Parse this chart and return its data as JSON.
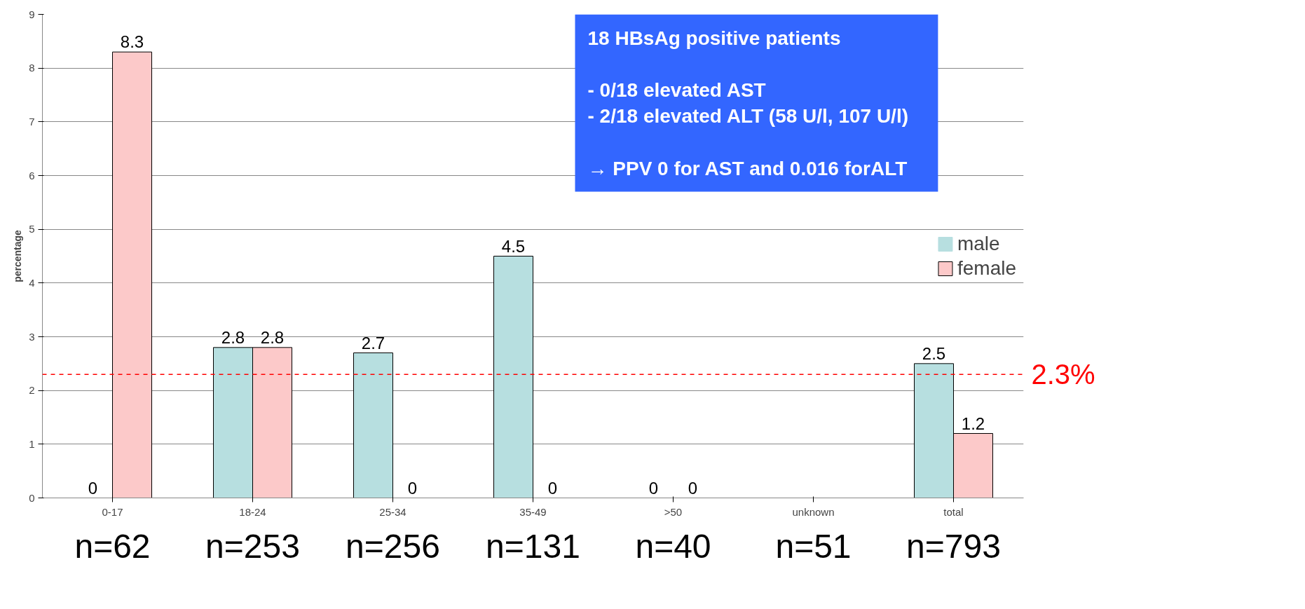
{
  "chart_data": {
    "type": "bar",
    "ylabel": "percentage",
    "categories": [
      "0-17",
      "18-24",
      "25-34",
      "35-49",
      ">50",
      "unknown",
      "total"
    ],
    "series": [
      {
        "name": "male",
        "color": "#b7dfe0",
        "values": [
          0,
          2.8,
          2.7,
          4.5,
          0,
          null,
          2.5
        ]
      },
      {
        "name": "female",
        "color": "#fcc9c9",
        "values": [
          8.3,
          2.8,
          0,
          0,
          0,
          null,
          1.2
        ]
      }
    ],
    "ylim": [
      0,
      9
    ],
    "yticks": [
      0,
      1,
      2,
      3,
      4,
      5,
      6,
      7,
      8,
      9
    ],
    "grid": "y",
    "legend": "right",
    "data_labels": true,
    "ref_lines": [
      {
        "axis": "y",
        "value": 2.3,
        "label": "2.3%",
        "color": "#ff0000",
        "line_style": "dashed"
      }
    ],
    "annotations": [
      "18 HBsAg positive patients",
      "-    0/18 elevated AST",
      "-    2/18 elevated ALT (58 U/l, 107 U/l)",
      "→ PPV 0 for AST and 0.016 forALT",
      "n=62",
      "n=253",
      "n=256",
      "n=131",
      "n=40",
      "n=51",
      "n=793"
    ]
  }
}
